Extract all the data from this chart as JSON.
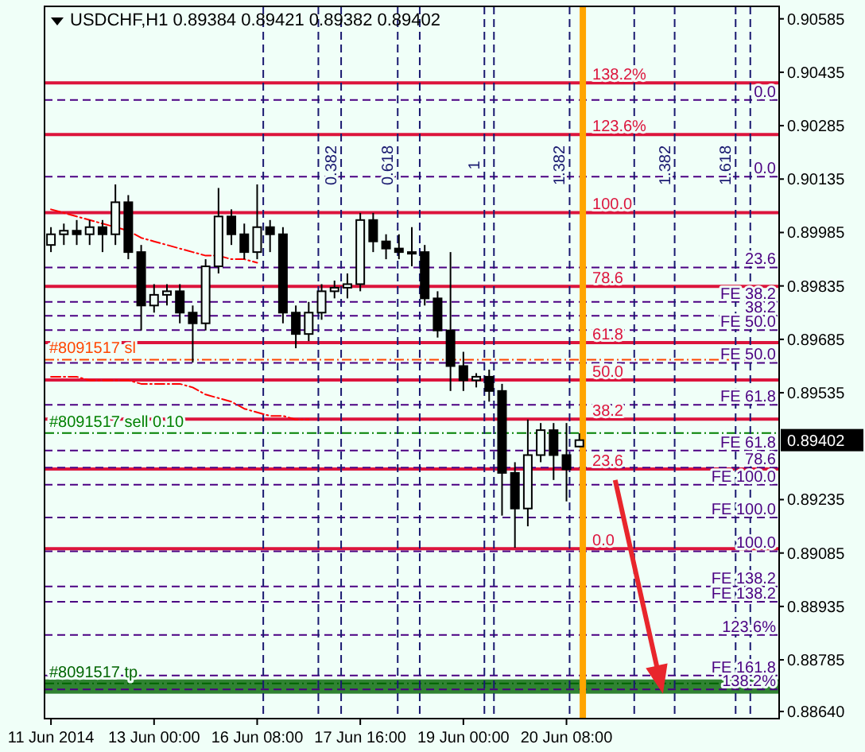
{
  "chart_data": {
    "type": "candlestick",
    "title": "USDCHF,H1 0.89384 0.89421 0.89382 0.89402",
    "color": "#000000",
    "categories": [
      "11 Jun 2014",
      null,
      null,
      null,
      null,
      null,
      null,
      null,
      "13 Jun 00:00",
      null,
      null,
      null,
      null,
      null,
      null,
      null,
      "16 Jun 08:00",
      null,
      null,
      null,
      null,
      null,
      null,
      null,
      "17 Jun 16:00",
      null,
      null,
      null,
      null,
      null,
      null,
      null,
      "19 Jun 00:00",
      null,
      null,
      null,
      null,
      null,
      null,
      null,
      "20 Jun 08:00",
      null,
      null,
      null,
      null,
      null,
      null,
      null,
      null,
      null,
      null,
      null,
      null,
      null,
      null,
      null,
      null
    ],
    "ohlc": [
      [
        0.8995,
        0.9,
        0.8993,
        0.8998
      ],
      [
        0.8998,
        0.9001,
        0.8995,
        0.8999
      ],
      [
        0.8999,
        0.9002,
        0.8995,
        0.8998
      ],
      [
        0.8998,
        0.9002,
        0.8995,
        0.9
      ],
      [
        0.9,
        0.9002,
        0.8993,
        0.8998
      ],
      [
        0.8998,
        0.9012,
        0.8995,
        0.9007
      ],
      [
        0.9007,
        0.9009,
        0.8991,
        0.8993
      ],
      [
        0.8993,
        0.8995,
        0.8971,
        0.8978
      ],
      [
        0.8978,
        0.8984,
        0.8976,
        0.8981
      ],
      [
        0.8981,
        0.8984,
        0.8978,
        0.8982
      ],
      [
        0.8982,
        0.8984,
        0.8973,
        0.8976
      ],
      [
        0.8976,
        0.8978,
        0.8962,
        0.8973
      ],
      [
        0.8973,
        0.8991,
        0.8971,
        0.8989
      ],
      [
        0.8989,
        0.9011,
        0.8987,
        0.9003
      ],
      [
        0.9003,
        0.9005,
        0.8995,
        0.8998
      ],
      [
        0.8998,
        0.9001,
        0.8991,
        0.8993
      ],
      [
        0.8993,
        0.9012,
        0.8991,
        0.9
      ],
      [
        0.9,
        0.9002,
        0.8993,
        0.8998
      ],
      [
        0.8998,
        0.9,
        0.8973,
        0.8976
      ],
      [
        0.8976,
        0.8978,
        0.8966,
        0.897
      ],
      [
        0.897,
        0.8979,
        0.8968,
        0.8976
      ],
      [
        0.8976,
        0.8984,
        0.8974,
        0.8982
      ],
      [
        0.8982,
        0.8985,
        0.898,
        0.8983
      ],
      [
        0.8983,
        0.8987,
        0.898,
        0.8984
      ],
      [
        0.8984,
        0.9004,
        0.8982,
        0.9002
      ],
      [
        0.9002,
        0.9004,
        0.8993,
        0.8996
      ],
      [
        0.8996,
        0.8998,
        0.8991,
        0.8994
      ],
      [
        0.8994,
        0.8998,
        0.8991,
        0.8993
      ],
      [
        0.8993,
        0.9,
        0.8989,
        0.8993
      ],
      [
        0.8993,
        0.8995,
        0.8978,
        0.898
      ],
      [
        0.898,
        0.8982,
        0.8969,
        0.8971
      ],
      [
        0.8971,
        0.8993,
        0.8954,
        0.8961
      ],
      [
        0.8961,
        0.8965,
        0.8954,
        0.8957
      ],
      [
        0.8957,
        0.8959,
        0.8955,
        0.8958
      ],
      [
        0.8958,
        0.896,
        0.8951,
        0.8954
      ],
      [
        0.8954,
        0.8956,
        0.8919,
        0.8931
      ],
      [
        0.8931,
        0.8934,
        0.891,
        0.8921
      ],
      [
        0.8921,
        0.8946,
        0.8916,
        0.8936
      ],
      [
        0.8936,
        0.8945,
        0.8934,
        0.8943
      ],
      [
        0.8943,
        0.8945,
        0.8929,
        0.8936
      ],
      [
        0.8936,
        0.8945,
        0.8923,
        0.8932
      ],
      [
        0.89384,
        0.89421,
        0.89382,
        0.89402
      ],
      null,
      null,
      null,
      null,
      null,
      null,
      null,
      null,
      null,
      null,
      null,
      null,
      null,
      null,
      null
    ],
    "series": [
      {
        "type": "line",
        "color": "#ff0000",
        "line_style": "dotted",
        "values": [
          0.9005,
          0.9004,
          0.9003,
          0.9002,
          0.9001,
          0.9,
          0.8999,
          0.8997,
          0.8996,
          0.8995,
          0.8994,
          0.8993,
          0.8992,
          0.8992,
          0.8991,
          0.8991,
          0.899,
          null,
          null,
          null,
          null,
          null,
          null,
          null,
          null,
          null,
          null,
          null,
          null,
          null,
          null,
          null,
          null,
          null,
          null,
          null,
          null,
          null,
          null,
          null,
          null,
          null,
          null,
          null,
          null,
          null,
          null,
          null,
          null,
          null,
          null,
          null,
          null,
          null,
          null,
          null,
          null
        ]
      },
      {
        "type": "line",
        "color": "#ff0000",
        "line_style": "dotted",
        "values": [
          0.8958,
          0.8958,
          0.8958,
          0.8957,
          0.8957,
          0.8957,
          0.8957,
          0.8956,
          0.8956,
          0.8956,
          0.8956,
          0.8955,
          0.8953,
          0.8952,
          0.8951,
          0.8949,
          0.8948,
          0.8947,
          0.8947,
          0.8946,
          0.8946,
          null,
          null,
          null,
          null,
          null,
          null,
          null,
          null,
          null,
          null,
          null,
          null,
          null,
          null,
          null,
          null,
          null,
          null,
          null,
          null,
          null,
          null,
          null,
          null,
          null,
          null,
          null,
          null,
          null,
          null,
          null,
          null,
          null,
          null,
          null,
          null
        ]
      }
    ],
    "ylim": [
      0.8862,
      0.9062
    ],
    "yticks": [
      0.90585,
      0.90435,
      0.90285,
      0.90135,
      0.89985,
      0.89835,
      0.89685,
      0.89535,
      0.89235,
      0.89085,
      0.88935,
      0.88785,
      {
        "value": 0.8864,
        "label": "0.88640"
      }
    ],
    "bands": [
      {
        "axis": "y",
        "from": 0.8869,
        "to": 0.8873,
        "color": "#006400"
      }
    ],
    "ref_lines": [
      {
        "axis": "y",
        "value": 0.90405,
        "color": "#dc143c",
        "line_style": "solid"
      },
      {
        "axis": "y",
        "value": 0.9026,
        "color": "#dc143c",
        "line_style": "solid"
      },
      {
        "axis": "y",
        "value": 0.90041,
        "color": "#dc143c",
        "line_style": "solid"
      },
      {
        "axis": "y",
        "value": 0.89834,
        "color": "#dc143c",
        "line_style": "solid"
      },
      {
        "axis": "y",
        "value": 0.89676,
        "color": "#dc143c",
        "line_style": "solid"
      },
      {
        "axis": "y",
        "value": 0.89571,
        "color": "#dc143c",
        "line_style": "solid"
      },
      {
        "axis": "y",
        "value": 0.89461,
        "color": "#dc143c",
        "line_style": "solid"
      },
      {
        "axis": "y",
        "value": 0.89321,
        "color": "#dc143c",
        "line_style": "solid"
      },
      {
        "axis": "y",
        "value": 0.89097,
        "color": "#dc143c",
        "line_style": "solid"
      },
      {
        "axis": "y",
        "value": 0.90357,
        "color": "#4b0082",
        "line_style": "dashed"
      },
      {
        "axis": "y",
        "value": 0.90142,
        "color": "#4b0082",
        "line_style": "dashed"
      },
      {
        "axis": "y",
        "value": 0.89887,
        "color": "#4b0082",
        "line_style": "dashed"
      },
      {
        "axis": "y",
        "value": 0.8979,
        "color": "#4b0082",
        "line_style": "dashed"
      },
      {
        "axis": "y",
        "value": 0.89751,
        "color": "#4b0082",
        "line_style": "dashed"
      },
      {
        "axis": "y",
        "value": 0.89711,
        "color": "#4b0082",
        "line_style": "dashed"
      },
      {
        "axis": "y",
        "value": 0.89619,
        "color": "#4b0082",
        "line_style": "dashed"
      },
      {
        "axis": "y",
        "value": 0.89501,
        "color": "#4b0082",
        "line_style": "dashed"
      },
      {
        "axis": "y",
        "value": 0.89373,
        "color": "#4b0082",
        "line_style": "dashed"
      },
      {
        "axis": "y",
        "value": 0.89325,
        "color": "#4b0082",
        "line_style": "dashed"
      },
      {
        "axis": "y",
        "value": 0.89277,
        "color": "#4b0082",
        "line_style": "dashed"
      },
      {
        "axis": "y",
        "value": 0.89185,
        "color": "#4b0082",
        "line_style": "dashed"
      },
      {
        "axis": "y",
        "value": 0.8909,
        "color": "#4b0082",
        "line_style": "dashed"
      },
      {
        "axis": "y",
        "value": 0.88991,
        "color": "#4b0082",
        "line_style": "dashed"
      },
      {
        "axis": "y",
        "value": 0.88948,
        "color": "#4b0082",
        "line_style": "dashed"
      },
      {
        "axis": "y",
        "value": 0.88855,
        "color": "#4b0082",
        "line_style": "dashed"
      },
      {
        "axis": "y",
        "value": 0.88741,
        "color": "#4b0082",
        "line_style": "dashed"
      },
      {
        "axis": "y",
        "value": 0.88702,
        "color": "#4b0082",
        "line_style": "dashed"
      },
      {
        "axis": "y",
        "value": 0.89628,
        "label": "#8091517 sl",
        "color": "#ff4500",
        "line_style": "dotted"
      },
      {
        "axis": "y",
        "value": 0.89422,
        "label": "#8091517 sell 0.10",
        "color": "#008000",
        "line_style": "dotted"
      },
      {
        "axis": "y",
        "value": 0.88719,
        "label": "#8091517 tp",
        "color": "#006400",
        "line_style": "dotted"
      }
    ],
    "annotations": [
      {
        "text": "138.2%",
        "y": 0.90405
      },
      {
        "text": "123.6%",
        "y": 0.9026
      },
      {
        "text": "100.0",
        "y": 0.90041
      },
      {
        "text": "78.6",
        "y": 0.89834
      },
      {
        "text": "61.8",
        "y": 0.89676
      },
      {
        "text": "50.0",
        "y": 0.89571
      },
      {
        "text": "38.2",
        "y": 0.89461
      },
      {
        "text": "23.6",
        "y": 0.89321
      },
      {
        "text": "0.0",
        "y": 0.89097
      },
      {
        "text": "0.0",
        "y": 0.90357
      },
      {
        "text": "0.0",
        "y": 0.90142
      },
      {
        "text": "23.6",
        "y": 0.89887
      },
      {
        "text": "FE 38.2",
        "y": 0.8979
      },
      {
        "text": "38.2",
        "y": 0.89751
      },
      {
        "text": "FE 50.0",
        "y": 0.89711
      },
      {
        "text": "FE 50.0",
        "y": 0.89619
      },
      {
        "text": "FE 61.8",
        "y": 0.89501
      },
      {
        "text": "FE 61.8",
        "y": 0.89373
      },
      {
        "text": "78.6",
        "y": 0.89325
      },
      {
        "text": "FE 100.0",
        "y": 0.89277
      },
      {
        "text": "FE 100.0",
        "y": 0.89185
      },
      {
        "text": "100.0",
        "y": 0.8909
      },
      {
        "text": "FE 138.2",
        "y": 0.88991
      },
      {
        "text": "FE 138.2",
        "y": 0.88948
      },
      {
        "text": "123.6%",
        "y": 0.88855
      },
      {
        "text": "FE 161.8",
        "y": 0.88741
      },
      {
        "text": "138.2%",
        "y": 0.88702
      },
      "0.382",
      "0.618",
      "1",
      "1.382",
      "1.382",
      "1.618",
      "0.89402"
    ]
  }
}
